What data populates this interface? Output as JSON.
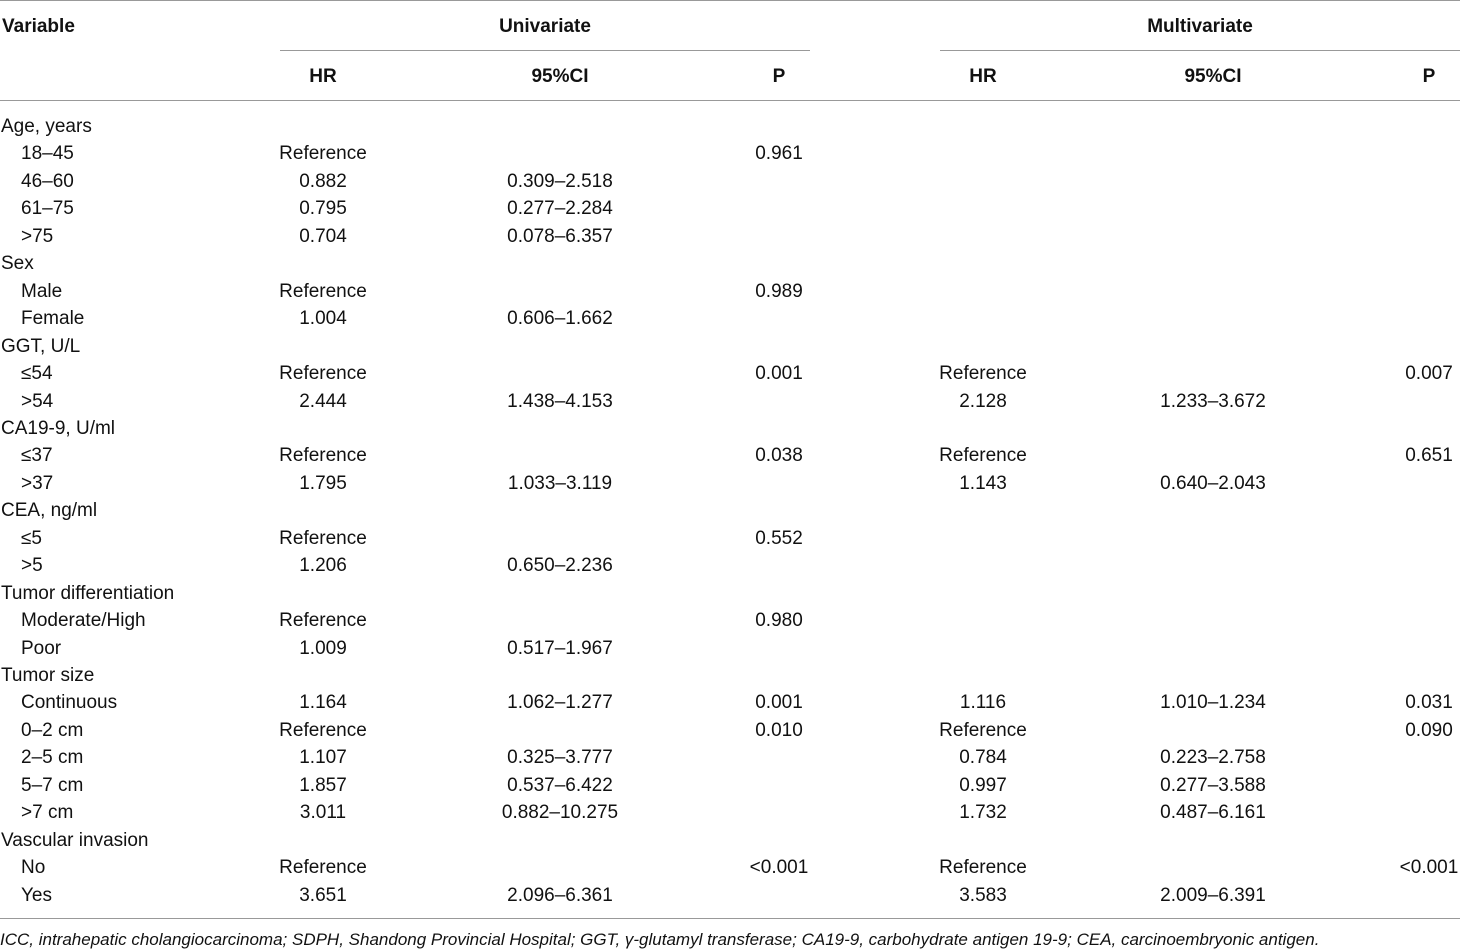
{
  "header": {
    "variable": "Variable",
    "univariate": "Univariate",
    "multivariate": "Multivariate",
    "hr": "HR",
    "ci": "95%CI",
    "p": "P"
  },
  "rows": [
    {
      "label": "Age, years",
      "indent": false
    },
    {
      "label": "18–45",
      "indent": true,
      "u_hr": "Reference",
      "u_ci": "",
      "u_p": "0.961"
    },
    {
      "label": "46–60",
      "indent": true,
      "u_hr": "0.882",
      "u_ci": "0.309–2.518"
    },
    {
      "label": "61–75",
      "indent": true,
      "u_hr": "0.795",
      "u_ci": "0.277–2.284"
    },
    {
      "label": ">75",
      "indent": true,
      "u_hr": "0.704",
      "u_ci": "0.078–6.357"
    },
    {
      "label": "Sex",
      "indent": false
    },
    {
      "label": "Male",
      "indent": true,
      "u_hr": "Reference",
      "u_p": "0.989"
    },
    {
      "label": "Female",
      "indent": true,
      "u_hr": "1.004",
      "u_ci": "0.606–1.662"
    },
    {
      "label": "GGT, U/L",
      "indent": false
    },
    {
      "label": "≤54",
      "indent": true,
      "u_hr": "Reference",
      "u_p": "0.001",
      "m_hr": "Reference",
      "m_p": "0.007"
    },
    {
      "label": ">54",
      "indent": true,
      "u_hr": "2.444",
      "u_ci": "1.438–4.153",
      "m_hr": "2.128",
      "m_ci": "1.233–3.672"
    },
    {
      "label": "CA19-9, U/ml",
      "indent": false
    },
    {
      "label": "≤37",
      "indent": true,
      "u_hr": "Reference",
      "u_p": "0.038",
      "m_hr": "Reference",
      "m_p": "0.651"
    },
    {
      "label": ">37",
      "indent": true,
      "u_hr": "1.795",
      "u_ci": "1.033–3.119",
      "m_hr": "1.143",
      "m_ci": "0.640–2.043"
    },
    {
      "label": "CEA, ng/ml",
      "indent": false
    },
    {
      "label": "≤5",
      "indent": true,
      "u_hr": "Reference",
      "u_p": "0.552"
    },
    {
      "label": ">5",
      "indent": true,
      "u_hr": "1.206",
      "u_ci": "0.650–2.236"
    },
    {
      "label": "Tumor differentiation",
      "indent": false
    },
    {
      "label": "Moderate/High",
      "indent": true,
      "u_hr": "Reference",
      "u_p": "0.980"
    },
    {
      "label": "Poor",
      "indent": true,
      "u_hr": "1.009",
      "u_ci": "0.517–1.967"
    },
    {
      "label": "Tumor size",
      "indent": false
    },
    {
      "label": "Continuous",
      "indent": true,
      "u_hr": "1.164",
      "u_ci": "1.062–1.277",
      "u_p": "0.001",
      "m_hr": "1.116",
      "m_ci": "1.010–1.234",
      "m_p": "0.031"
    },
    {
      "label": "0–2 cm",
      "indent": true,
      "u_hr": "Reference",
      "u_p": "0.010",
      "m_hr": "Reference",
      "m_p": "0.090"
    },
    {
      "label": "2–5 cm",
      "indent": true,
      "u_hr": "1.107",
      "u_ci": "0.325–3.777",
      "m_hr": "0.784",
      "m_ci": "0.223–2.758"
    },
    {
      "label": "5–7 cm",
      "indent": true,
      "u_hr": "1.857",
      "u_ci": "0.537–6.422",
      "m_hr": "0.997",
      "m_ci": "0.277–3.588"
    },
    {
      "label": ">7 cm",
      "indent": true,
      "u_hr": "3.011",
      "u_ci": "0.882–10.275",
      "m_hr": "1.732",
      "m_ci": "0.487–6.161"
    },
    {
      "label": "Vascular invasion",
      "indent": false
    },
    {
      "label": "No",
      "indent": true,
      "u_hr": "Reference",
      "u_p": "<0.001",
      "m_hr": "Reference",
      "m_p": "<0.001"
    },
    {
      "label": "Yes",
      "indent": true,
      "u_hr": "3.651",
      "u_ci": "2.096–6.361",
      "m_hr": "3.583",
      "m_ci": "2.009–6.391"
    }
  ],
  "footnote": "ICC, intrahepatic cholangiocarcinoma; SDPH, Shandong Provincial Hospital; GGT, γ-glutamyl transferase; CA19-9, carbohydrate antigen 19-9; CEA, carcinoembryonic antigen."
}
